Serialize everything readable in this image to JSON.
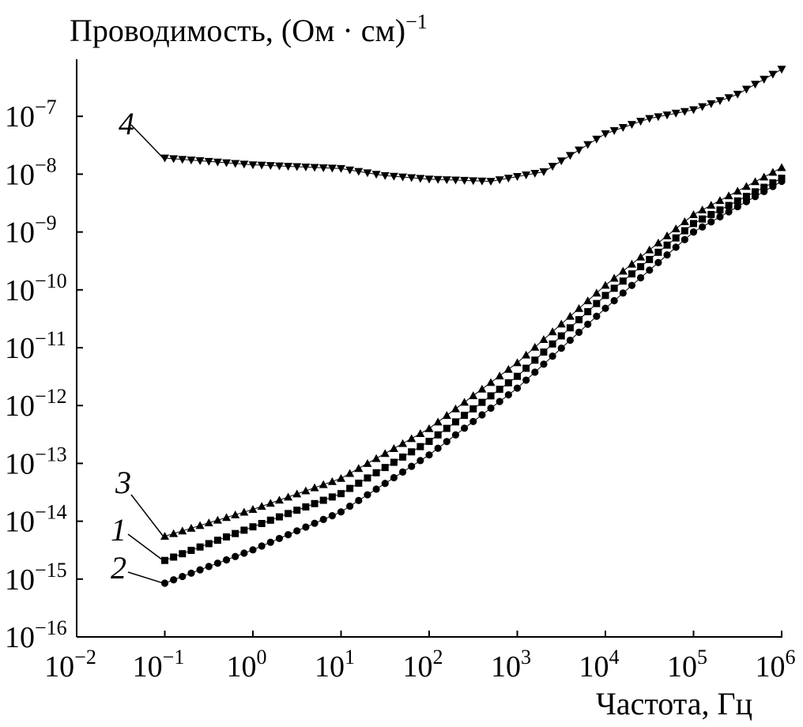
{
  "chart_data": {
    "type": "scatter",
    "ylabel": "Проводимость, (Ом · см)",
    "ylabel_exp": "−1",
    "xlabel": "Частота, Гц",
    "x_scale": "log",
    "y_scale": "log",
    "xlim": [
      0.01,
      1000000
    ],
    "ylim": [
      1e-16,
      1e-06
    ],
    "grid": false,
    "x_ticks": [
      {
        "value": 0.01,
        "base": "10",
        "exp": "−2"
      },
      {
        "value": 0.1,
        "base": "10",
        "exp": "−1"
      },
      {
        "value": 1,
        "base": "10",
        "exp": "0"
      },
      {
        "value": 10,
        "base": "10",
        "exp": "1"
      },
      {
        "value": 100,
        "base": "10",
        "exp": "2"
      },
      {
        "value": 1000,
        "base": "10",
        "exp": "3"
      },
      {
        "value": 10000,
        "base": "10",
        "exp": "4"
      },
      {
        "value": 100000,
        "base": "10",
        "exp": "5"
      },
      {
        "value": 1000000,
        "base": "10",
        "exp": "6"
      }
    ],
    "y_ticks": [
      {
        "value": 1e-16,
        "base": "10",
        "exp": "−16"
      },
      {
        "value": 1e-15,
        "base": "10",
        "exp": "−15"
      },
      {
        "value": 1e-14,
        "base": "10",
        "exp": "−14"
      },
      {
        "value": 1e-13,
        "base": "10",
        "exp": "−13"
      },
      {
        "value": 1e-12,
        "base": "10",
        "exp": "−12"
      },
      {
        "value": 1e-11,
        "base": "10",
        "exp": "−11"
      },
      {
        "value": 1e-10,
        "base": "10",
        "exp": "−10"
      },
      {
        "value": 1e-09,
        "base": "10",
        "exp": "−9"
      },
      {
        "value": 1e-08,
        "base": "10",
        "exp": "−8"
      },
      {
        "value": 1e-07,
        "base": "10",
        "exp": "−7"
      }
    ],
    "series": [
      {
        "name": "1",
        "marker": "square",
        "points": [
          [
            0.1,
            2.1e-15
          ],
          [
            1,
            8e-15
          ],
          [
            10,
            3e-14
          ],
          [
            100,
            2.4e-13
          ],
          [
            1000,
            3.2e-12
          ],
          [
            10000,
            8e-11
          ],
          [
            100000,
            1.4e-09
          ],
          [
            1000000,
            8.5e-09
          ]
        ]
      },
      {
        "name": "2",
        "marker": "circle",
        "points": [
          [
            0.1,
            8.5e-16
          ],
          [
            1,
            3.2e-15
          ],
          [
            10,
            1.45e-14
          ],
          [
            100,
            1.4e-13
          ],
          [
            1000,
            2e-12
          ],
          [
            10000,
            4.8e-11
          ],
          [
            100000,
            1e-09
          ],
          [
            1000000,
            7.5e-09
          ]
        ]
      },
      {
        "name": "3",
        "marker": "triangle-up",
        "points": [
          [
            0.1,
            5.5e-15
          ],
          [
            1,
            1.6e-14
          ],
          [
            10,
            5.5e-14
          ],
          [
            100,
            4e-13
          ],
          [
            1000,
            5.5e-12
          ],
          [
            10000,
            1.2e-10
          ],
          [
            100000,
            2e-09
          ],
          [
            1000000,
            1.3e-08
          ]
        ]
      },
      {
        "name": "4",
        "marker": "triangle-down",
        "points": [
          [
            0.1,
            1.9e-08
          ],
          [
            1,
            1.45e-08
          ],
          [
            10,
            1.25e-08
          ],
          [
            30,
            9.5e-09
          ],
          [
            100,
            8.2e-09
          ],
          [
            500,
            7.5e-09
          ],
          [
            2000,
            1.1e-08
          ],
          [
            10000,
            5e-08
          ],
          [
            30000,
            9e-08
          ],
          [
            100000,
            1.3e-07
          ],
          [
            300000,
            2.3e-07
          ],
          [
            1000000,
            6.5e-07
          ]
        ]
      }
    ]
  }
}
